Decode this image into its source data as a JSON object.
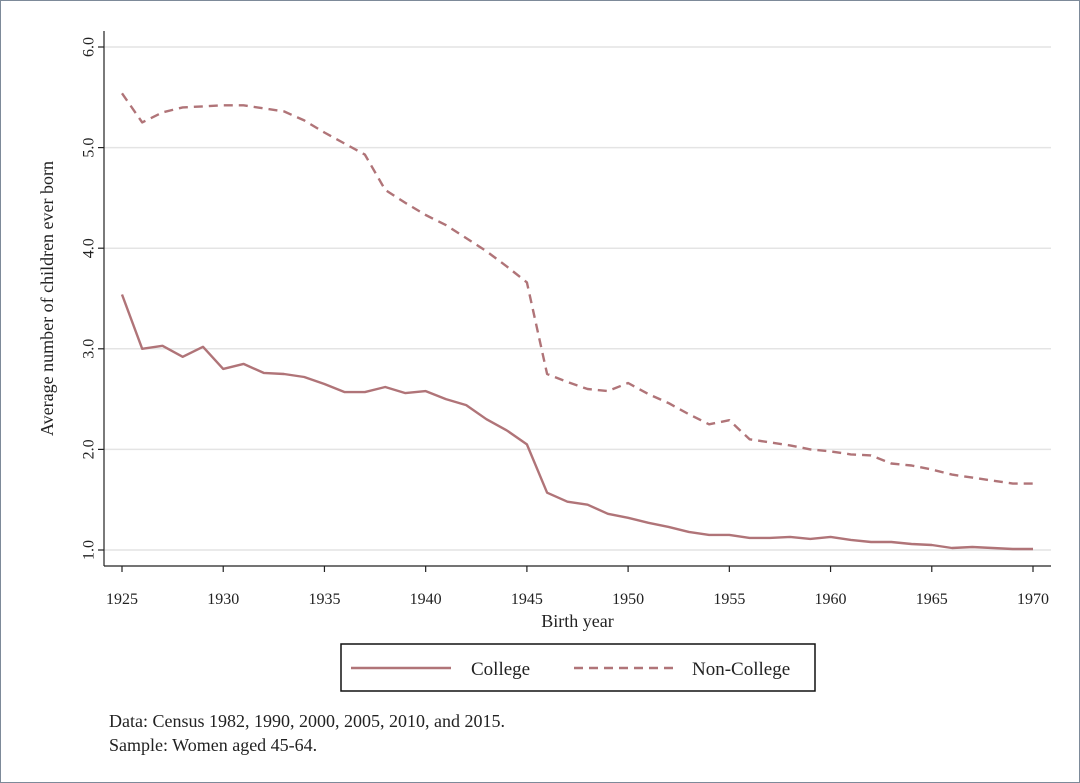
{
  "colors": {
    "series": "#b07478",
    "grid": "#e4e4e4",
    "axis": "#222222",
    "frame": "#7d8a99"
  },
  "chart_data": {
    "type": "line",
    "title": "",
    "xlabel": "Birth year",
    "ylabel": "Average number of children ever born",
    "xlim": [
      1925,
      1970
    ],
    "ylim": [
      1.0,
      6.0
    ],
    "xticks": [
      1925,
      1930,
      1935,
      1940,
      1945,
      1950,
      1955,
      1960,
      1965,
      1970
    ],
    "xtick_labels": [
      "1925",
      "1930",
      "1935",
      "1940",
      "1945",
      "1950",
      "1955",
      "1960",
      "1965",
      "1970"
    ],
    "yticks": [
      1.0,
      2.0,
      3.0,
      4.0,
      5.0,
      6.0
    ],
    "ytick_labels": [
      "1.0",
      "2.0",
      "3.0",
      "4.0",
      "5.0",
      "6.0"
    ],
    "grid": "horizontal",
    "legend_position": "bottom",
    "x": [
      1925,
      1926,
      1927,
      1928,
      1929,
      1930,
      1931,
      1932,
      1933,
      1934,
      1935,
      1936,
      1937,
      1938,
      1939,
      1940,
      1941,
      1942,
      1943,
      1944,
      1945,
      1946,
      1947,
      1948,
      1949,
      1950,
      1951,
      1952,
      1953,
      1954,
      1955,
      1956,
      1957,
      1958,
      1959,
      1960,
      1961,
      1962,
      1963,
      1964,
      1965,
      1966,
      1967,
      1968,
      1969,
      1970
    ],
    "series": [
      {
        "name": "College",
        "line_style": "solid",
        "values": [
          3.54,
          3.0,
          3.03,
          2.92,
          3.02,
          2.8,
          2.85,
          2.76,
          2.75,
          2.72,
          2.65,
          2.57,
          2.57,
          2.62,
          2.56,
          2.58,
          2.5,
          2.44,
          2.3,
          2.19,
          2.05,
          1.57,
          1.48,
          1.45,
          1.36,
          1.32,
          1.27,
          1.23,
          1.18,
          1.15,
          1.15,
          1.12,
          1.12,
          1.13,
          1.11,
          1.13,
          1.1,
          1.08,
          1.08,
          1.06,
          1.05,
          1.02,
          1.03,
          1.02,
          1.01,
          1.01
        ]
      },
      {
        "name": "Non-College",
        "line_style": "dashed",
        "values": [
          5.54,
          5.25,
          5.35,
          5.4,
          5.41,
          5.42,
          5.42,
          5.39,
          5.36,
          5.27,
          5.15,
          5.04,
          4.93,
          4.58,
          4.45,
          4.33,
          4.23,
          4.1,
          3.97,
          3.82,
          3.66,
          2.75,
          2.67,
          2.6,
          2.58,
          2.66,
          2.55,
          2.46,
          2.35,
          2.25,
          2.29,
          2.1,
          2.07,
          2.04,
          2.0,
          1.98,
          1.95,
          1.94,
          1.86,
          1.84,
          1.8,
          1.75,
          1.72,
          1.69,
          1.66,
          1.66
        ]
      }
    ]
  },
  "notes": {
    "line1": "Data: Census 1982, 1990, 2000, 2005, 2010, and 2015.",
    "line2": "Sample: Women aged 45-64."
  }
}
